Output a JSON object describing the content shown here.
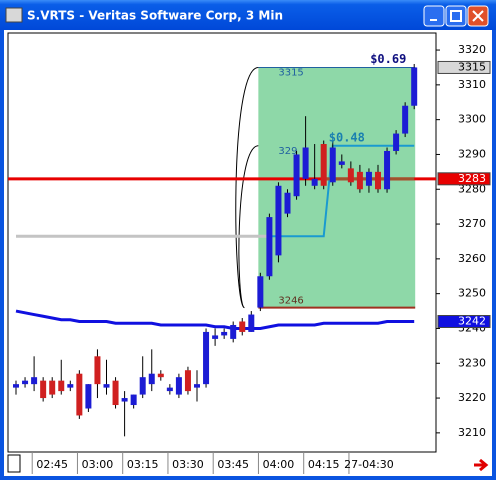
{
  "window_title": "S.VRTS - Veritas Software Corp, 3 Min",
  "chart_data": {
    "type": "candlestick",
    "x": [
      null,
      null,
      null,
      null,
      "02:45",
      null,
      null,
      null,
      null,
      "03:00",
      null,
      null,
      null,
      null,
      "03:15",
      null,
      null,
      null,
      null,
      "03:30",
      null,
      null,
      null,
      null,
      "03:45",
      null,
      null,
      null,
      null,
      "04:00",
      null,
      null,
      null,
      null,
      "04:15",
      null,
      null,
      null,
      null,
      "27-04:30",
      null,
      null,
      null,
      null,
      null
    ],
    "open": [
      3223,
      3224,
      3224,
      3225,
      3225,
      3225,
      3223,
      3227,
      3217,
      3232,
      3223,
      3225,
      3219,
      3218,
      3221,
      3224,
      3227,
      3222,
      3221,
      3228,
      3223,
      3224,
      3237,
      3238,
      3237,
      3242,
      3239,
      3246,
      3255,
      3261,
      3273,
      3278,
      3283,
      3281,
      3293,
      3282,
      3287,
      3286,
      3285,
      3281,
      3285,
      3280,
      3291,
      3296,
      3304
    ],
    "high": [
      3225,
      3226,
      3232,
      3226,
      3226,
      3231,
      3225,
      3228,
      3224,
      3234,
      3231,
      3226,
      3222,
      3221,
      3232,
      3234,
      3228,
      3224,
      3227,
      3229,
      3228,
      3240,
      3240,
      3240,
      3242,
      3243,
      3245,
      3256,
      3273,
      3282,
      3280,
      3291,
      3301,
      3293,
      3294,
      3294,
      3290,
      3288,
      3287,
      3286,
      3287,
      3292,
      3297,
      3305,
      3316
    ],
    "low": [
      3221,
      3223,
      3222,
      3219,
      3220,
      3221,
      3222,
      3214,
      3216,
      3220,
      3221,
      3217,
      3209,
      3217,
      3220,
      3222,
      3225,
      3221,
      3220,
      3221,
      3219,
      3223,
      3235,
      3237,
      3236,
      3238,
      3239,
      3245,
      3254,
      3259,
      3272,
      3277,
      3281,
      3280,
      3280,
      3281,
      3286,
      3281,
      3279,
      3279,
      3279,
      3279,
      3290,
      3295,
      3303
    ],
    "close": [
      3224,
      3225,
      3226,
      3220,
      3221,
      3222,
      3224,
      3215,
      3224,
      3224,
      3224,
      3218,
      3220,
      3221,
      3226,
      3227,
      3226,
      3223,
      3226,
      3222,
      3224,
      3239,
      3238,
      3239,
      3241,
      3239,
      3244,
      3255,
      3272,
      3281,
      3279,
      3290,
      3292,
      3283,
      3281,
      3292,
      3288,
      3282,
      3280,
      3285,
      3280,
      3291,
      3296,
      3304,
      3315
    ],
    "up_color": "#1c1cd4",
    "down_color": "#d02020",
    "ylim": [
      3204.5,
      3324.9
    ],
    "yticks": [
      3210,
      3220,
      3230,
      3240,
      3250,
      3260,
      3270,
      3280,
      3290,
      3300,
      3310,
      3320
    ],
    "levels": [
      {
        "value": 3283,
        "color": "#e80000"
      }
    ],
    "lines": [
      {
        "color": "#1010e0",
        "values": [
          3245,
          3244.5,
          3244,
          3243.5,
          3243,
          3242.5,
          3242.5,
          3242,
          3242,
          3242,
          3242,
          3241.5,
          3241.5,
          3241.5,
          3241.5,
          3241.5,
          3241,
          3241,
          3241,
          3241,
          3241,
          3241,
          3240.5,
          3240.5,
          3240,
          3240,
          3240,
          3240,
          3240.5,
          3241,
          3241,
          3241,
          3241,
          3241,
          3241.5,
          3241.5,
          3241.5,
          3241.5,
          3241.5,
          3241.5,
          3241.5,
          3242,
          3242,
          3242,
          3242
        ]
      },
      {
        "color": "#c4c4c4",
        "values": [
          3266.5,
          3266.5,
          3266.5,
          3266.5,
          3266.5,
          3266.5,
          3266.5,
          3266.5,
          3266.5,
          3266.5,
          3266.5,
          3266.5,
          3266.5,
          3266.5,
          3266.5,
          3266.5,
          3266.5,
          3266.5,
          3266.5,
          3266.5,
          3266.5,
          3266.5,
          3266.5,
          3266.5,
          3266.5,
          3266.5,
          3266.5,
          3266.5,
          3266.5,
          null,
          null,
          null,
          null,
          null,
          null,
          null,
          null,
          null,
          null,
          null,
          null,
          null,
          null,
          null,
          null
        ]
      },
      {
        "color": "#1a9ad0",
        "values": [
          null,
          null,
          null,
          null,
          null,
          null,
          null,
          null,
          null,
          null,
          null,
          null,
          null,
          null,
          null,
          null,
          null,
          null,
          null,
          null,
          null,
          null,
          null,
          null,
          null,
          null,
          null,
          null,
          3266.5,
          3266.5,
          3266.5,
          3266.5,
          3266.5,
          3266.5,
          3266.5,
          3292.5,
          3292.5,
          3292.5,
          3292.5,
          3292.5,
          3292.5,
          3292.5,
          3292.5,
          3292.5,
          3292.5
        ]
      },
      {
        "color": "#a0522d",
        "values": [
          null,
          null,
          null,
          null,
          null,
          null,
          null,
          null,
          null,
          null,
          null,
          null,
          null,
          null,
          null,
          null,
          null,
          null,
          null,
          null,
          null,
          null,
          null,
          null,
          null,
          null,
          null,
          null,
          null,
          null,
          null,
          null,
          null,
          null,
          3283,
          3283,
          3283,
          3283,
          3283,
          3283,
          3283,
          3283,
          3283,
          3283,
          3283
        ]
      }
    ],
    "box": {
      "top": 3315,
      "bottom": 3246,
      "color": "#8ed8a8"
    },
    "box_mid_label": "329",
    "annotations": [
      "$0.69",
      "$0.48"
    ],
    "price_tags": [
      3315,
      3283,
      3242
    ],
    "tag_colors": [
      "#d8d8d8",
      "#e80000",
      "#1010e0"
    ]
  }
}
